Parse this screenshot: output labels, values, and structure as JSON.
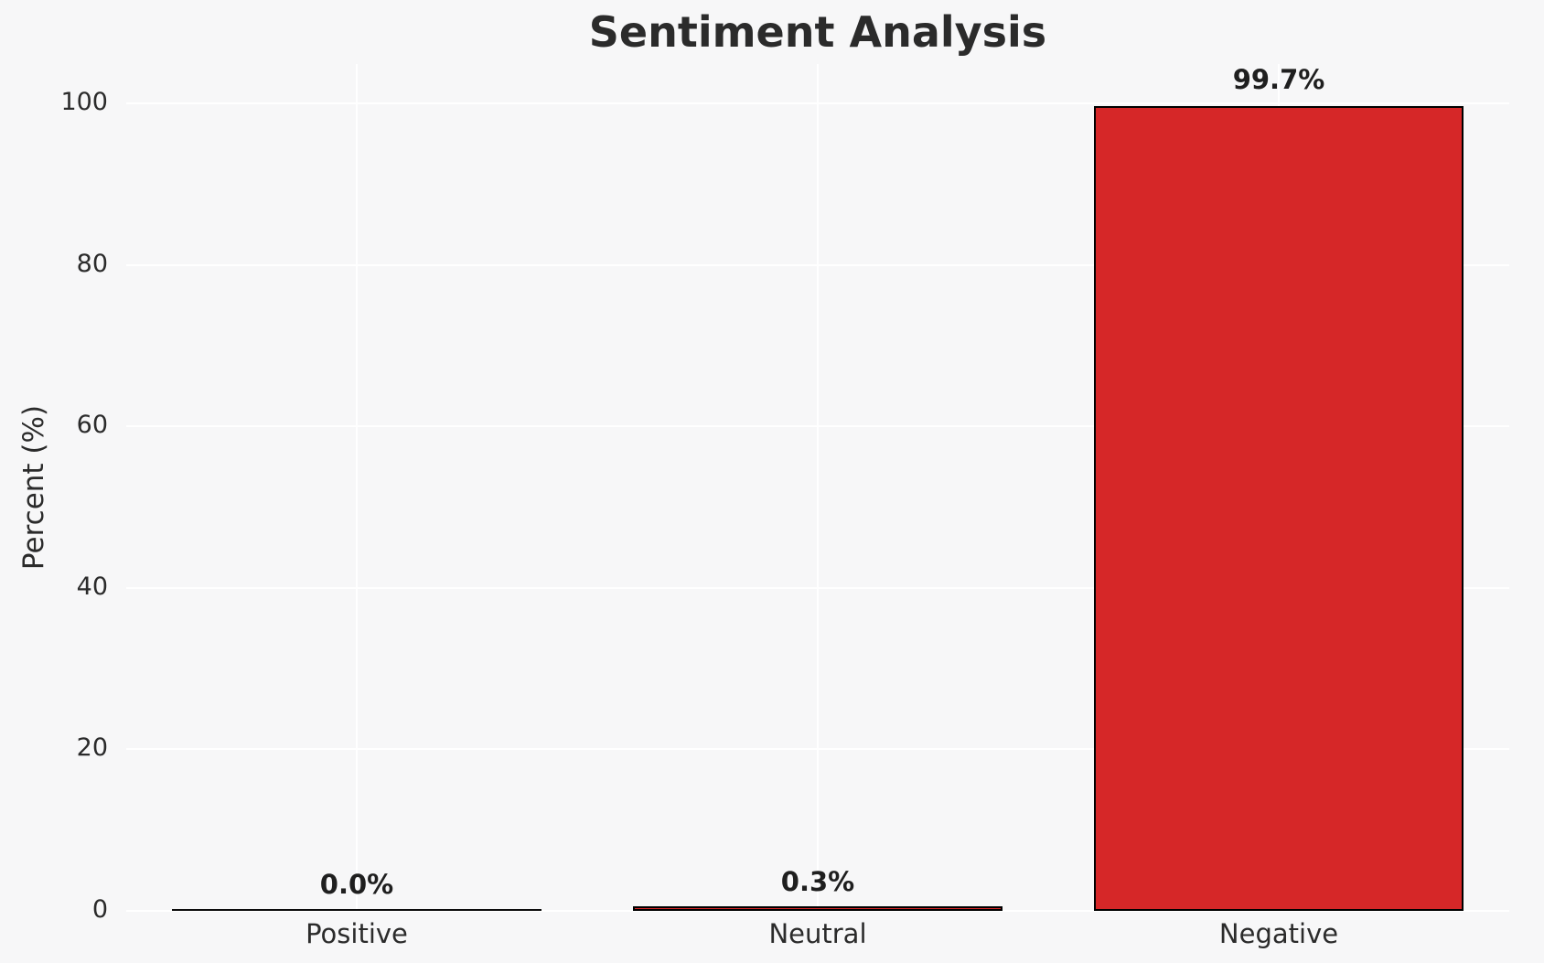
{
  "title": "Sentiment Analysis",
  "colors": {
    "background": "#f7f7f8",
    "gridline": "#ffffff",
    "bar_fill": "#d62728",
    "bar_edge": "#000000",
    "text": "#2b2b2b"
  },
  "chart_data": {
    "type": "bar",
    "title": "Sentiment Analysis",
    "xlabel": "",
    "ylabel": "Percent (%)",
    "categories": [
      "Positive",
      "Neutral",
      "Negative"
    ],
    "values": [
      0.0,
      0.3,
      99.7
    ],
    "value_labels": [
      "0.0%",
      "0.3%",
      "99.7%"
    ],
    "bar_color": "#d62728",
    "bar_edge_color": "#000000",
    "yticks": [
      0,
      20,
      40,
      60,
      80,
      100
    ],
    "ylim": [
      0,
      104.9
    ],
    "grid": true,
    "grid_color": "#ffffff",
    "legend": null
  }
}
